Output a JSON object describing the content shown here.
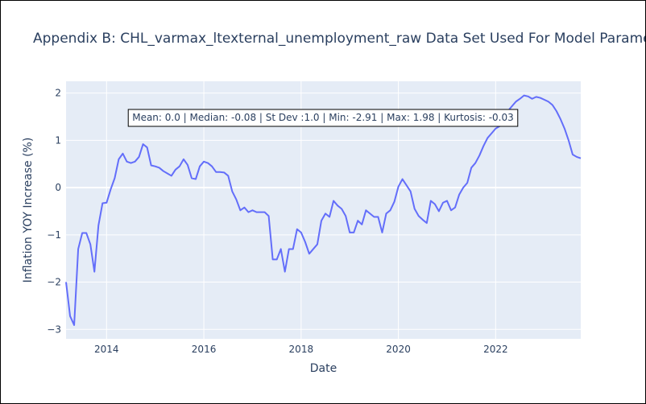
{
  "chart_data": {
    "type": "line",
    "title": "Appendix B: CHL_varmax_ltexternal_unemployment_raw Data Set Used For Model Parameter",
    "xlabel": "Date",
    "ylabel": "Inflation YOY Increase (%)",
    "xlim": [
      "2013-03-01",
      "2023-10-01"
    ],
    "ylim": [
      -3.2,
      2.25
    ],
    "x_ticks": [
      "2014",
      "2016",
      "2018",
      "2020",
      "2022"
    ],
    "y_ticks": [
      "−3",
      "−2",
      "−1",
      "0",
      "1",
      "2"
    ],
    "grid": true,
    "legend": "none",
    "annotation": "Mean: 0.0 | Median: -0.08 | St Dev :1.0 | Min: -2.91 | Max: 1.98 | Kurtosis: -0.03",
    "line_color": "#636efa",
    "plot_bgcolor": "#e5ecf6",
    "series": [
      {
        "x": [
          "2013-03",
          "2013-04",
          "2013-05",
          "2013-06",
          "2013-07",
          "2013-08",
          "2013-09",
          "2013-10",
          "2013-11",
          "2013-12",
          "2014-01",
          "2014-02",
          "2014-03",
          "2014-04",
          "2014-05",
          "2014-06",
          "2014-07",
          "2014-08",
          "2014-09",
          "2014-10",
          "2014-11",
          "2014-12",
          "2015-01",
          "2015-02",
          "2015-03",
          "2015-04",
          "2015-05",
          "2015-06",
          "2015-07",
          "2015-08",
          "2015-09",
          "2015-10",
          "2015-11",
          "2015-12",
          "2016-01",
          "2016-02",
          "2016-03",
          "2016-04",
          "2016-05",
          "2016-06",
          "2016-07",
          "2016-08",
          "2016-09",
          "2016-10",
          "2016-11",
          "2016-12",
          "2017-01",
          "2017-02",
          "2017-03",
          "2017-04",
          "2017-05",
          "2017-06",
          "2017-07",
          "2017-08",
          "2017-09",
          "2017-10",
          "2017-11",
          "2017-12",
          "2018-01",
          "2018-02",
          "2018-03",
          "2018-04",
          "2018-05",
          "2018-06",
          "2018-07",
          "2018-08",
          "2018-09",
          "2018-10",
          "2018-11",
          "2018-12",
          "2019-01",
          "2019-02",
          "2019-03",
          "2019-04",
          "2019-05",
          "2019-06",
          "2019-07",
          "2019-08",
          "2019-09",
          "2019-10",
          "2019-11",
          "2019-12",
          "2020-01",
          "2020-02",
          "2020-03",
          "2020-04",
          "2020-05",
          "2020-06",
          "2020-07",
          "2020-08",
          "2020-09",
          "2020-10",
          "2020-11",
          "2020-12",
          "2021-01",
          "2021-02",
          "2021-03",
          "2021-04",
          "2021-05",
          "2021-06",
          "2021-07",
          "2021-08",
          "2021-09",
          "2021-10",
          "2021-11",
          "2021-12",
          "2022-01",
          "2022-02",
          "2022-03",
          "2022-04",
          "2022-05",
          "2022-06",
          "2022-07",
          "2022-08",
          "2022-09",
          "2022-10",
          "2022-11",
          "2022-12",
          "2023-01",
          "2023-02",
          "2023-03",
          "2023-04",
          "2023-05",
          "2023-06",
          "2023-07",
          "2023-08",
          "2023-09",
          "2023-10"
        ],
        "y": [
          -2.0,
          -2.72,
          -2.91,
          -1.3,
          -0.96,
          -0.96,
          -1.2,
          -1.78,
          -0.8,
          -0.33,
          -0.32,
          -0.04,
          0.2,
          0.6,
          0.72,
          0.55,
          0.52,
          0.55,
          0.65,
          0.92,
          0.85,
          0.47,
          0.45,
          0.42,
          0.35,
          0.3,
          0.25,
          0.38,
          0.45,
          0.6,
          0.48,
          0.2,
          0.18,
          0.45,
          0.55,
          0.52,
          0.45,
          0.33,
          0.33,
          0.32,
          0.25,
          -0.08,
          -0.25,
          -0.48,
          -0.42,
          -0.52,
          -0.48,
          -0.52,
          -0.52,
          -0.52,
          -0.6,
          -1.52,
          -1.52,
          -1.3,
          -1.78,
          -1.3,
          -1.3,
          -0.88,
          -0.95,
          -1.15,
          -1.4,
          -1.3,
          -1.2,
          -0.7,
          -0.55,
          -0.62,
          -0.28,
          -0.38,
          -0.45,
          -0.6,
          -0.95,
          -0.95,
          -0.7,
          -0.78,
          -0.48,
          -0.55,
          -0.62,
          -0.62,
          -0.95,
          -0.55,
          -0.48,
          -0.3,
          0.02,
          0.18,
          0.05,
          -0.08,
          -0.45,
          -0.6,
          -0.68,
          -0.75,
          -0.28,
          -0.35,
          -0.5,
          -0.32,
          -0.28,
          -0.48,
          -0.42,
          -0.15,
          0.0,
          0.1,
          0.42,
          0.52,
          0.68,
          0.88,
          1.05,
          1.15,
          1.25,
          1.3,
          1.45,
          1.62,
          1.72,
          1.82,
          1.88,
          1.95,
          1.93,
          1.88,
          1.92,
          1.9,
          1.86,
          1.82,
          1.75,
          1.62,
          1.45,
          1.25,
          1.0,
          0.7,
          0.65,
          0.62
        ]
      }
    ]
  }
}
